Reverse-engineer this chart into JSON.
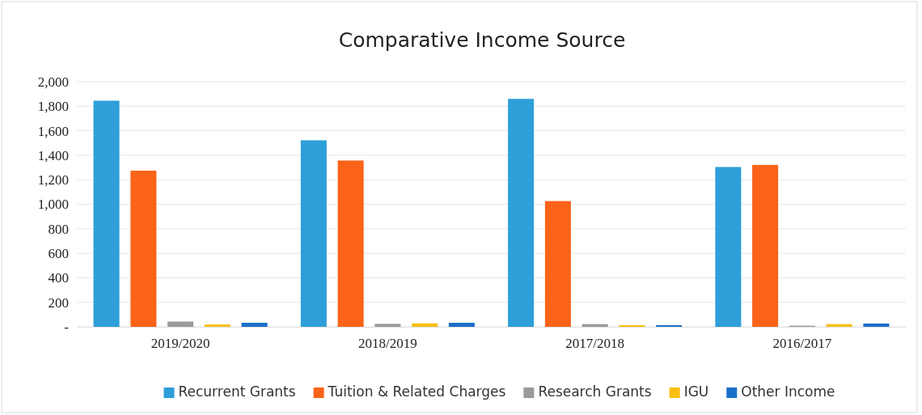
{
  "chart_data": {
    "type": "bar",
    "title": "Comparative Income Source",
    "categories": [
      "2019/2020",
      "2018/2019",
      "2017/2018",
      "2016/2017"
    ],
    "series": [
      {
        "name": "Recurrent Grants",
        "color": "#2e9fd8",
        "values": [
          1845,
          1522,
          1860,
          1304
        ]
      },
      {
        "name": "Tuition & Related Charges",
        "color": "#fb6418",
        "values": [
          1274,
          1357,
          1026,
          1321
        ]
      },
      {
        "name": "Research Grants",
        "color": "#9a9a9a",
        "values": [
          43,
          24,
          22,
          9
        ]
      },
      {
        "name": "IGU",
        "color": "#f7bf10",
        "values": [
          19,
          28,
          14,
          22
        ]
      },
      {
        "name": "Other Income",
        "color": "#1a6fc8",
        "values": [
          33,
          33,
          13,
          27
        ]
      }
    ],
    "ylim": [
      0,
      2000
    ],
    "yticks": [
      {
        "value": 0,
        "label": "-"
      },
      {
        "value": 200,
        "label": "200"
      },
      {
        "value": 400,
        "label": "400"
      },
      {
        "value": 600,
        "label": "600"
      },
      {
        "value": 800,
        "label": "800"
      },
      {
        "value": 1000,
        "label": "1,000"
      },
      {
        "value": 1200,
        "label": "1,200"
      },
      {
        "value": 1400,
        "label": "1,400"
      },
      {
        "value": 1600,
        "label": "1,600"
      },
      {
        "value": 1800,
        "label": "1,800"
      },
      {
        "value": 2000,
        "label": "2,000"
      }
    ],
    "grid": "y",
    "legend": "bottom"
  }
}
